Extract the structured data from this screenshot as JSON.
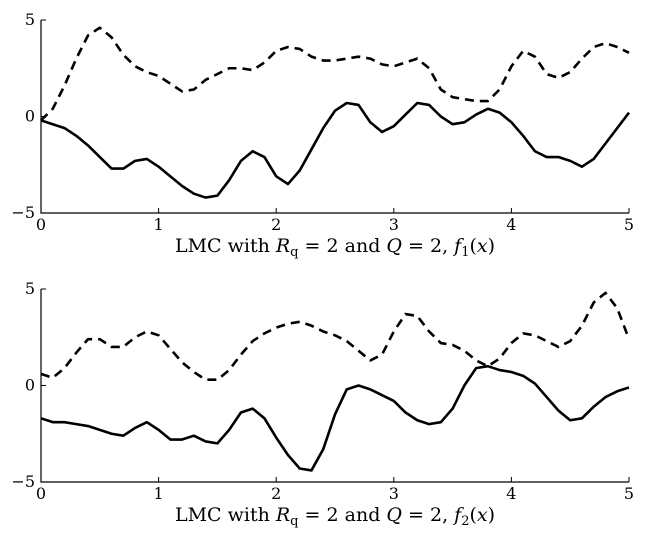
{
  "chart_data": [
    {
      "type": "line",
      "title": "",
      "caption_parts": [
        "LMC with ",
        "R",
        "q",
        " = 2 and ",
        "Q",
        " = 2, ",
        "f",
        "1",
        "(",
        "x",
        ")"
      ],
      "xlim": [
        0,
        5
      ],
      "ylim": [
        -5,
        5
      ],
      "xticks": [
        "0",
        "1",
        "2",
        "3",
        "4",
        "5"
      ],
      "yticks": [
        "5",
        "0",
        "−5"
      ],
      "series": [
        {
          "style": "dashed",
          "color": "#000000",
          "x": [
            0,
            0.1,
            0.2,
            0.3,
            0.4,
            0.5,
            0.6,
            0.7,
            0.8,
            0.9,
            1.0,
            1.1,
            1.2,
            1.3,
            1.4,
            1.5,
            1.6,
            1.7,
            1.8,
            1.9,
            2.0,
            2.1,
            2.2,
            2.3,
            2.4,
            2.5,
            2.6,
            2.7,
            2.8,
            2.9,
            3.0,
            3.1,
            3.2,
            3.3,
            3.4,
            3.5,
            3.6,
            3.7,
            3.8,
            3.9,
            4.0,
            4.1,
            4.2,
            4.3,
            4.4,
            4.5,
            4.6,
            4.7,
            4.8,
            4.9,
            5.0
          ],
          "y": [
            -0.2,
            0.4,
            1.6,
            3.0,
            4.2,
            4.6,
            4.1,
            3.2,
            2.6,
            2.3,
            2.1,
            1.7,
            1.3,
            1.4,
            1.9,
            2.2,
            2.5,
            2.5,
            2.4,
            2.8,
            3.4,
            3.6,
            3.5,
            3.1,
            2.9,
            2.9,
            3.0,
            3.1,
            3.0,
            2.7,
            2.6,
            2.8,
            3.0,
            2.5,
            1.4,
            1.0,
            0.9,
            0.8,
            0.8,
            1.4,
            2.6,
            3.4,
            3.1,
            2.2,
            2.0,
            2.3,
            3.0,
            3.6,
            3.8,
            3.6,
            3.3
          ]
        },
        {
          "style": "solid",
          "color": "#000000",
          "x": [
            0,
            0.1,
            0.2,
            0.3,
            0.4,
            0.5,
            0.6,
            0.7,
            0.8,
            0.9,
            1.0,
            1.1,
            1.2,
            1.3,
            1.4,
            1.5,
            1.6,
            1.7,
            1.8,
            1.9,
            2.0,
            2.1,
            2.2,
            2.3,
            2.4,
            2.5,
            2.6,
            2.7,
            2.8,
            2.9,
            3.0,
            3.1,
            3.2,
            3.3,
            3.4,
            3.5,
            3.6,
            3.7,
            3.8,
            3.9,
            4.0,
            4.1,
            4.2,
            4.3,
            4.4,
            4.5,
            4.6,
            4.7,
            4.8,
            4.9,
            5.0
          ],
          "y": [
            -0.2,
            -0.4,
            -0.6,
            -1.0,
            -1.5,
            -2.1,
            -2.7,
            -2.7,
            -2.3,
            -2.2,
            -2.6,
            -3.1,
            -3.6,
            -4.0,
            -4.2,
            -4.1,
            -3.3,
            -2.3,
            -1.8,
            -2.1,
            -3.1,
            -3.5,
            -2.8,
            -1.7,
            -0.6,
            0.3,
            0.7,
            0.6,
            -0.3,
            -0.8,
            -0.5,
            0.1,
            0.7,
            0.6,
            0.0,
            -0.4,
            -0.3,
            0.1,
            0.4,
            0.2,
            -0.3,
            -1.0,
            -1.8,
            -2.1,
            -2.1,
            -2.3,
            -2.6,
            -2.2,
            -1.4,
            -0.6,
            0.2
          ]
        }
      ]
    },
    {
      "type": "line",
      "title": "",
      "caption_parts": [
        "LMC with ",
        "R",
        "q",
        " = 2 and ",
        "Q",
        " = 2, ",
        "f",
        "2",
        "(",
        "x",
        ")"
      ],
      "xlim": [
        0,
        5
      ],
      "ylim": [
        -5,
        5
      ],
      "xticks": [
        "0",
        "1",
        "2",
        "3",
        "4",
        "5"
      ],
      "yticks": [
        "5",
        "0",
        "−5"
      ],
      "series": [
        {
          "style": "dashed",
          "color": "#000000",
          "x": [
            0,
            0.1,
            0.2,
            0.3,
            0.4,
            0.5,
            0.6,
            0.7,
            0.8,
            0.9,
            1.0,
            1.1,
            1.2,
            1.3,
            1.4,
            1.5,
            1.6,
            1.7,
            1.8,
            1.9,
            2.0,
            2.1,
            2.2,
            2.3,
            2.4,
            2.5,
            2.6,
            2.7,
            2.8,
            2.9,
            3.0,
            3.1,
            3.2,
            3.3,
            3.4,
            3.5,
            3.6,
            3.7,
            3.8,
            3.9,
            4.0,
            4.1,
            4.2,
            4.3,
            4.4,
            4.5,
            4.6,
            4.7,
            4.8,
            4.9,
            5.0
          ],
          "y": [
            0.6,
            0.4,
            0.9,
            1.7,
            2.4,
            2.4,
            2.0,
            2.0,
            2.5,
            2.8,
            2.6,
            1.9,
            1.2,
            0.7,
            0.3,
            0.3,
            0.8,
            1.6,
            2.3,
            2.7,
            3.0,
            3.2,
            3.3,
            3.1,
            2.8,
            2.6,
            2.3,
            1.8,
            1.3,
            1.6,
            2.8,
            3.7,
            3.6,
            2.8,
            2.2,
            2.1,
            1.8,
            1.3,
            1.0,
            1.4,
            2.2,
            2.7,
            2.6,
            2.3,
            2.0,
            2.3,
            3.1,
            4.3,
            4.8,
            4.0,
            2.4
          ]
        },
        {
          "style": "solid",
          "color": "#000000",
          "x": [
            0,
            0.1,
            0.2,
            0.3,
            0.4,
            0.5,
            0.6,
            0.7,
            0.8,
            0.9,
            1.0,
            1.1,
            1.2,
            1.3,
            1.4,
            1.5,
            1.6,
            1.7,
            1.8,
            1.9,
            2.0,
            2.1,
            2.2,
            2.3,
            2.4,
            2.5,
            2.6,
            2.7,
            2.8,
            2.9,
            3.0,
            3.1,
            3.2,
            3.3,
            3.4,
            3.5,
            3.6,
            3.7,
            3.8,
            3.9,
            4.0,
            4.1,
            4.2,
            4.3,
            4.4,
            4.5,
            4.6,
            4.7,
            4.8,
            4.9,
            5.0
          ],
          "y": [
            -1.7,
            -1.9,
            -1.9,
            -2.0,
            -2.1,
            -2.3,
            -2.5,
            -2.6,
            -2.2,
            -1.9,
            -2.3,
            -2.8,
            -2.8,
            -2.6,
            -2.9,
            -3.0,
            -2.3,
            -1.4,
            -1.2,
            -1.7,
            -2.7,
            -3.6,
            -4.3,
            -4.4,
            -3.3,
            -1.5,
            -0.2,
            0.0,
            -0.2,
            -0.5,
            -0.8,
            -1.4,
            -1.8,
            -2.0,
            -1.9,
            -1.2,
            0.0,
            0.9,
            1.0,
            0.8,
            0.7,
            0.5,
            0.1,
            -0.6,
            -1.3,
            -1.8,
            -1.7,
            -1.1,
            -0.6,
            -0.3,
            -0.1
          ]
        }
      ]
    }
  ]
}
